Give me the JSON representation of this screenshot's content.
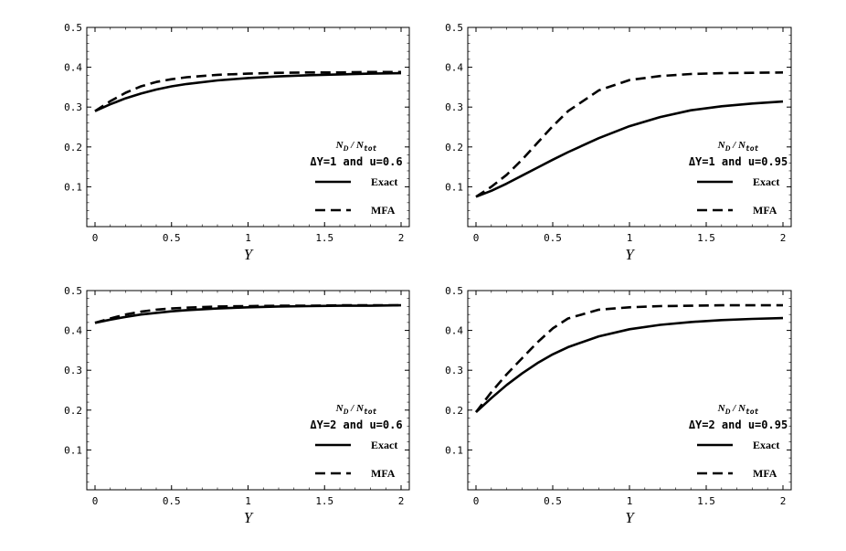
{
  "chart_data": [
    {
      "type": "line",
      "quantity": {
        "prefix": "N",
        "sub_num": "D",
        "sep": " / ",
        "denom": "N",
        "sub_den": "tot"
      },
      "condition": "ΔY=1 and u=0.6",
      "xlabel": "Y",
      "xlim": [
        0,
        2
      ],
      "ylim": [
        0,
        0.5
      ],
      "xticks": [
        0,
        0.5,
        1,
        1.5,
        2
      ],
      "xtick_labels": [
        "0",
        "0.5",
        "1",
        "1.5",
        "2"
      ],
      "yticks": [
        0.1,
        0.2,
        0.3,
        0.4,
        0.5
      ],
      "ytick_labels": [
        "0.1",
        "0.2",
        "0.3",
        "0.4",
        "0.5"
      ],
      "series": [
        {
          "name": "Exact",
          "style": "solid",
          "x": [
            0,
            0.1,
            0.2,
            0.3,
            0.4,
            0.5,
            0.6,
            0.8,
            1.0,
            1.2,
            1.4,
            1.6,
            1.8,
            2.0
          ],
          "values": [
            0.29,
            0.307,
            0.322,
            0.334,
            0.344,
            0.352,
            0.358,
            0.367,
            0.373,
            0.377,
            0.38,
            0.382,
            0.384,
            0.385
          ]
        },
        {
          "name": "MFA",
          "style": "dashed",
          "x": [
            0,
            0.1,
            0.2,
            0.3,
            0.4,
            0.5,
            0.6,
            0.8,
            1.0,
            1.2,
            1.4,
            1.6,
            1.8,
            2.0
          ],
          "values": [
            0.29,
            0.315,
            0.336,
            0.352,
            0.363,
            0.37,
            0.375,
            0.381,
            0.384,
            0.386,
            0.387,
            0.387,
            0.388,
            0.388
          ]
        }
      ]
    },
    {
      "type": "line",
      "quantity": {
        "prefix": "N",
        "sub_num": "D",
        "sep": " / ",
        "denom": "N",
        "sub_den": "tot"
      },
      "condition": "ΔY=1 and u=0.95",
      "xlabel": "Y",
      "xlim": [
        0,
        2
      ],
      "ylim": [
        0,
        0.5
      ],
      "xticks": [
        0,
        0.5,
        1,
        1.5,
        2
      ],
      "xtick_labels": [
        "0",
        "0.5",
        "1",
        "1.5",
        "2"
      ],
      "yticks": [
        0.1,
        0.2,
        0.3,
        0.4,
        0.5
      ],
      "ytick_labels": [
        "0.1",
        "0.2",
        "0.3",
        "0.4",
        "0.5"
      ],
      "series": [
        {
          "name": "Exact",
          "style": "solid",
          "x": [
            0,
            0.1,
            0.2,
            0.3,
            0.4,
            0.5,
            0.6,
            0.8,
            1.0,
            1.2,
            1.4,
            1.6,
            1.8,
            2.0
          ],
          "values": [
            0.075,
            0.09,
            0.108,
            0.128,
            0.148,
            0.168,
            0.187,
            0.222,
            0.252,
            0.275,
            0.292,
            0.302,
            0.309,
            0.314
          ]
        },
        {
          "name": "MFA",
          "style": "dashed",
          "x": [
            0,
            0.1,
            0.2,
            0.3,
            0.4,
            0.5,
            0.6,
            0.8,
            1.0,
            1.2,
            1.4,
            1.6,
            1.8,
            2.0
          ],
          "values": [
            0.075,
            0.1,
            0.13,
            0.168,
            0.21,
            0.252,
            0.29,
            0.342,
            0.368,
            0.378,
            0.383,
            0.385,
            0.386,
            0.387
          ]
        }
      ]
    },
    {
      "type": "line",
      "quantity": {
        "prefix": "N",
        "sub_num": "D",
        "sep": " / ",
        "denom": "N",
        "sub_den": "tot"
      },
      "condition": "ΔY=2 and u=0.6",
      "xlabel": "Y",
      "xlim": [
        0,
        2
      ],
      "ylim": [
        0,
        0.5
      ],
      "xticks": [
        0,
        0.5,
        1,
        1.5,
        2
      ],
      "xtick_labels": [
        "0",
        "0.5",
        "1",
        "1.5",
        "2"
      ],
      "yticks": [
        0.1,
        0.2,
        0.3,
        0.4,
        0.5
      ],
      "ytick_labels": [
        "0.1",
        "0.2",
        "0.3",
        "0.4",
        "0.5"
      ],
      "series": [
        {
          "name": "Exact",
          "style": "solid",
          "x": [
            0,
            0.1,
            0.2,
            0.3,
            0.4,
            0.5,
            0.6,
            0.8,
            1.0,
            1.2,
            1.4,
            1.6,
            1.8,
            2.0
          ],
          "values": [
            0.419,
            0.427,
            0.434,
            0.44,
            0.444,
            0.448,
            0.451,
            0.455,
            0.458,
            0.46,
            0.461,
            0.462,
            0.462,
            0.463
          ]
        },
        {
          "name": "MFA",
          "style": "dashed",
          "x": [
            0,
            0.1,
            0.2,
            0.3,
            0.4,
            0.5,
            0.6,
            0.8,
            1.0,
            1.2,
            1.4,
            1.6,
            1.8,
            2.0
          ],
          "values": [
            0.419,
            0.43,
            0.44,
            0.447,
            0.452,
            0.455,
            0.457,
            0.46,
            0.461,
            0.462,
            0.462,
            0.463,
            0.463,
            0.463
          ]
        }
      ]
    },
    {
      "type": "line",
      "quantity": {
        "prefix": "N",
        "sub_num": "D",
        "sep": " / ",
        "denom": "N",
        "sub_den": "tot"
      },
      "condition": "ΔY=2 and u=0.95",
      "xlabel": "Y",
      "xlim": [
        0,
        2
      ],
      "ylim": [
        0,
        0.5
      ],
      "xticks": [
        0,
        0.5,
        1,
        1.5,
        2
      ],
      "xtick_labels": [
        "0",
        "0.5",
        "1",
        "1.5",
        "2"
      ],
      "yticks": [
        0.1,
        0.2,
        0.3,
        0.4,
        0.5
      ],
      "ytick_labels": [
        "0.1",
        "0.2",
        "0.3",
        "0.4",
        "0.5"
      ],
      "series": [
        {
          "name": "Exact",
          "style": "solid",
          "x": [
            0,
            0.1,
            0.2,
            0.3,
            0.4,
            0.5,
            0.6,
            0.8,
            1.0,
            1.2,
            1.4,
            1.6,
            1.8,
            2.0
          ],
          "values": [
            0.195,
            0.23,
            0.263,
            0.292,
            0.318,
            0.34,
            0.358,
            0.385,
            0.403,
            0.414,
            0.421,
            0.426,
            0.429,
            0.431
          ]
        },
        {
          "name": "MFA",
          "style": "dashed",
          "x": [
            0,
            0.1,
            0.2,
            0.3,
            0.4,
            0.5,
            0.6,
            0.8,
            1.0,
            1.2,
            1.4,
            1.6,
            1.8,
            2.0
          ],
          "values": [
            0.195,
            0.245,
            0.29,
            0.33,
            0.37,
            0.405,
            0.43,
            0.452,
            0.458,
            0.461,
            0.462,
            0.463,
            0.463,
            0.463
          ]
        }
      ]
    }
  ]
}
